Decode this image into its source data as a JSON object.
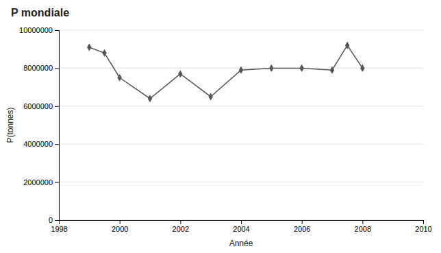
{
  "chart_data": {
    "type": "line",
    "title": "P mondiale",
    "xlabel": "Année",
    "ylabel": "P(tonnes)",
    "x": [
      1999,
      1999.5,
      2000,
      2001,
      2002,
      2003,
      2004,
      2005,
      2006,
      2007,
      2007.5,
      2008
    ],
    "values": [
      9100000,
      8800000,
      7500000,
      6400000,
      7700000,
      6500000,
      7900000,
      8000000,
      8000000,
      7900000,
      9200000,
      8000000
    ],
    "color": "#555555",
    "marker": "diamond",
    "xlim": [
      1998,
      2010
    ],
    "ylim": [
      0,
      10000000
    ],
    "xticks": [
      1998,
      2000,
      2002,
      2004,
      2006,
      2008,
      2010
    ],
    "yticks": [
      0,
      2000000,
      4000000,
      6000000,
      8000000,
      10000000
    ],
    "grid": "y"
  }
}
